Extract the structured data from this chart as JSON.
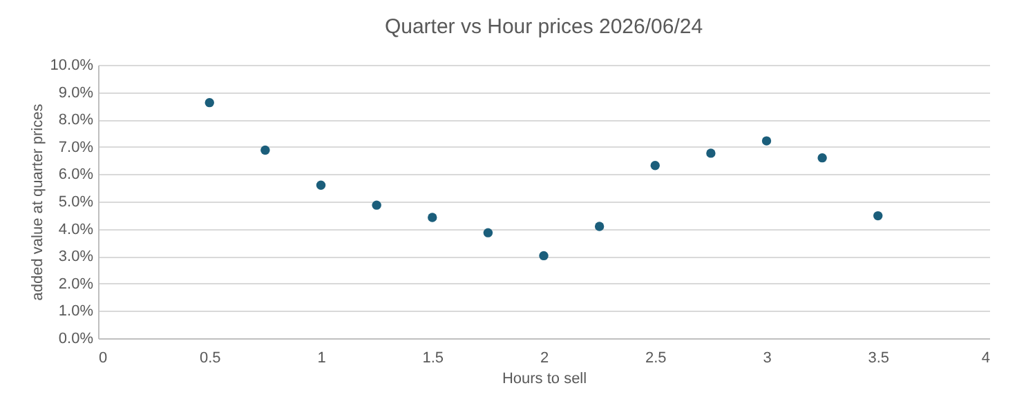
{
  "chart_data": {
    "type": "scatter",
    "title": "Quarter vs Hour prices 2026/06/24",
    "xlabel": "Hours to sell",
    "ylabel": "added value at quarter prices",
    "x": [
      0.5,
      0.75,
      1,
      1.25,
      1.5,
      1.75,
      2,
      2.25,
      2.5,
      2.75,
      3,
      3.25,
      3.5
    ],
    "series": [
      {
        "color": "#1b5e7b",
        "values": [
          8.62,
          6.88,
          5.6,
          4.87,
          4.42,
          3.86,
          3.02,
          4.09,
          6.32,
          6.77,
          7.22,
          6.6,
          4.48
        ]
      }
    ],
    "xlim": [
      0,
      4
    ],
    "xticks": [
      0,
      0.5,
      1,
      1.5,
      2,
      2.5,
      3,
      3.5,
      4
    ],
    "ylim": [
      0,
      10
    ],
    "yticks": [
      {
        "value": 0,
        "label": "0.0%"
      },
      {
        "value": 1,
        "label": "1.0%"
      },
      {
        "value": 2,
        "label": "2.0%"
      },
      {
        "value": 3,
        "label": "3.0%"
      },
      {
        "value": 4,
        "label": "4.0%"
      },
      {
        "value": 5,
        "label": "5.0%"
      },
      {
        "value": 6,
        "label": "6.0%"
      },
      {
        "value": 7,
        "label": "7.0%"
      },
      {
        "value": 8,
        "label": "8.0%"
      },
      {
        "value": 9,
        "label": "9.0%"
      },
      {
        "value": 10,
        "label": "10.0%"
      }
    ],
    "grid": "y",
    "marker": "circle"
  }
}
